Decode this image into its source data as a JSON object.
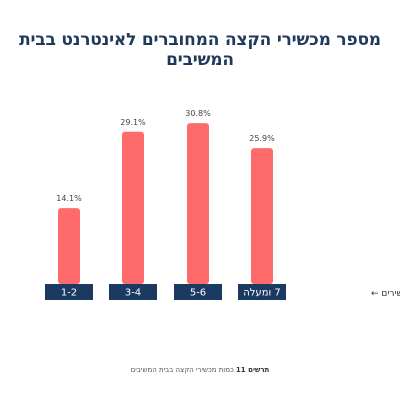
{
  "title": "מספר מכשירי הקצה המחוברים לאינטרנט בבית המשיבים",
  "colors": {
    "bar": "#ff6b6b",
    "category_box": "#1a3a63",
    "category_text": "#ffffff",
    "title": "#1f3a5a"
  },
  "chart_data": {
    "type": "bar",
    "title": "מספר מכשירי הקצה המחוברים לאינטרנט בבית המשיבים",
    "categories": [
      "1-2",
      "3-4",
      "5-6",
      "7 ומעלה"
    ],
    "values": [
      14.1,
      29.1,
      30.8,
      25.9
    ],
    "value_labels": [
      "14.1%",
      "29.1%",
      "30.8%",
      "25.9%"
    ],
    "xlabel": "מספר מכשירים ←",
    "ylabel": "",
    "ylim": [
      0,
      32
    ],
    "grid": false,
    "legend": "none"
  },
  "footnote": {
    "bold": "תרשים 11",
    "text": "כמות מכשירי הקצה בבית המשיבים"
  }
}
